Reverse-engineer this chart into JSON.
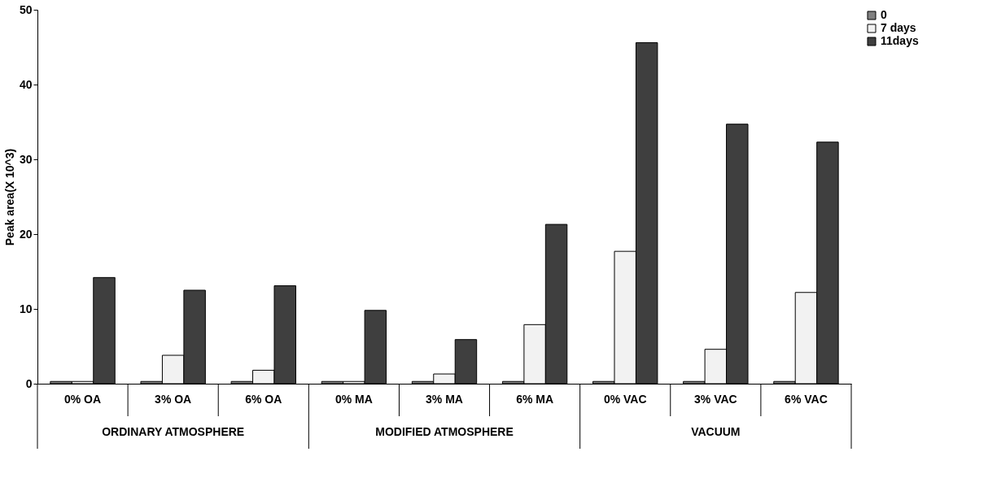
{
  "chart_data": {
    "type": "bar",
    "ylabel": "Peak area(X 10^3)",
    "categories": [
      "0% OA",
      "3% OA",
      "6% OA",
      "0% MA",
      "3% MA",
      "6% MA",
      "0% VAC",
      "3% VAC",
      "6% VAC"
    ],
    "series": [
      {
        "name": "0",
        "color": "#7f7f7f",
        "values": [
          0.3,
          0.3,
          0.3,
          0.3,
          0.3,
          0.3,
          0.3,
          0.3,
          0.3
        ]
      },
      {
        "name": "7 days",
        "color": "#f2f2f2",
        "values": [
          0.3,
          3.8,
          1.8,
          0.3,
          1.3,
          7.9,
          17.7,
          4.6,
          12.2
        ]
      },
      {
        "name": "11days",
        "color": "#3f3f3f",
        "values": [
          14.2,
          12.5,
          13.1,
          9.8,
          5.9,
          21.3,
          45.6,
          34.7,
          32.3
        ]
      }
    ],
    "annotations": [
      "ORDINARY ATMOSPHERE",
      "MODIFIED ATMOSPHERE",
      "VACUUM"
    ],
    "ylim": [
      0,
      50
    ],
    "yticks": [
      0,
      10,
      20,
      30,
      40,
      50
    ],
    "grid": false,
    "legend": "right"
  }
}
